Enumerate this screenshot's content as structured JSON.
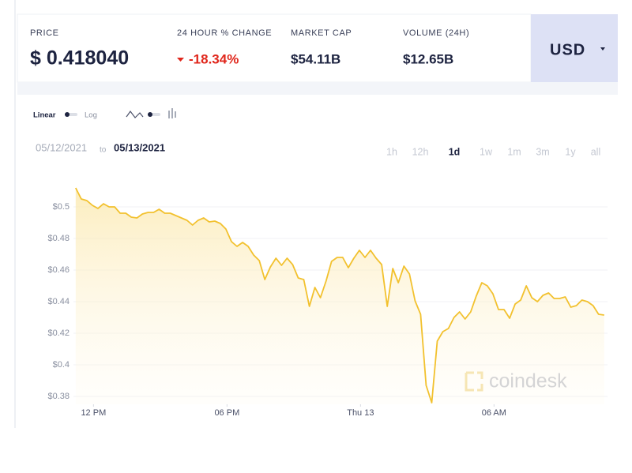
{
  "header": {
    "stats": [
      {
        "label": "PRICE",
        "value": "$ 0.418040"
      },
      {
        "label": "24 HOUR % CHANGE",
        "value": "-18.34%"
      },
      {
        "label": "MARKET CAP",
        "value": "$54.11B"
      },
      {
        "label": "VOLUME (24H)",
        "value": "$12.65B"
      }
    ],
    "currency": "USD"
  },
  "controls": {
    "scale": [
      "Linear",
      "Log"
    ],
    "date_from": "05/12/2021",
    "date_joiner": "to",
    "date_to": "05/13/2021",
    "ranges": [
      "1h",
      "12h",
      "1d",
      "1w",
      "1m",
      "3m",
      "1y",
      "all"
    ],
    "active_range": "1d"
  },
  "watermark": "coindesk",
  "chart_data": {
    "type": "line",
    "color": "#f2c12e",
    "grid": true,
    "xlim": [
      11.1,
      35.1
    ],
    "xticks": [
      {
        "value": 12,
        "label": "12 PM"
      },
      {
        "value": 18,
        "label": "06 PM"
      },
      {
        "value": 24,
        "label": "Thu 13"
      },
      {
        "value": 30,
        "label": "06 AM"
      }
    ],
    "ylim": [
      0.375,
      0.516
    ],
    "yticks": [
      {
        "value": 0.38,
        "label": "$0.38"
      },
      {
        "value": 0.4,
        "label": "$0.4"
      },
      {
        "value": 0.42,
        "label": "$0.42"
      },
      {
        "value": 0.44,
        "label": "$0.44"
      },
      {
        "value": 0.46,
        "label": "$0.46"
      },
      {
        "value": 0.48,
        "label": "$0.48"
      },
      {
        "value": 0.5,
        "label": "$0.5"
      }
    ],
    "x": [
      11.2,
      11.45,
      11.7,
      11.95,
      12.2,
      12.45,
      12.7,
      12.95,
      13.2,
      13.45,
      13.7,
      13.95,
      14.2,
      14.45,
      14.7,
      14.95,
      15.2,
      15.45,
      15.7,
      15.95,
      16.2,
      16.45,
      16.7,
      16.95,
      17.2,
      17.45,
      17.7,
      17.95,
      18.2,
      18.45,
      18.7,
      18.95,
      19.2,
      19.45,
      19.7,
      19.95,
      20.2,
      20.45,
      20.7,
      20.95,
      21.2,
      21.45,
      21.7,
      21.95,
      22.2,
      22.45,
      22.7,
      22.95,
      23.2,
      23.45,
      23.7,
      23.95,
      24.2,
      24.45,
      24.7,
      24.95,
      25.2,
      25.45,
      25.7,
      25.95,
      26.2,
      26.45,
      26.7,
      26.95,
      27.2,
      27.45,
      27.7,
      27.95,
      28.2,
      28.45,
      28.7,
      28.95,
      29.2,
      29.45,
      29.7,
      29.95,
      30.2,
      30.45,
      30.7,
      30.95,
      31.2,
      31.45,
      31.7,
      31.95,
      32.2,
      32.45,
      32.7,
      32.95,
      33.2,
      33.45,
      33.7,
      33.95,
      34.2,
      34.45,
      34.7,
      34.95
    ],
    "values": [
      0.512,
      0.505,
      0.504,
      0.501,
      0.499,
      0.502,
      0.5,
      0.5,
      0.496,
      0.496,
      0.4935,
      0.493,
      0.4955,
      0.4965,
      0.4965,
      0.4985,
      0.496,
      0.496,
      0.4945,
      0.493,
      0.4915,
      0.4885,
      0.4915,
      0.493,
      0.4905,
      0.491,
      0.4895,
      0.486,
      0.478,
      0.475,
      0.4775,
      0.475,
      0.4695,
      0.466,
      0.454,
      0.462,
      0.4675,
      0.463,
      0.4675,
      0.4635,
      0.455,
      0.454,
      0.437,
      0.449,
      0.4425,
      0.453,
      0.4655,
      0.468,
      0.468,
      0.4615,
      0.4675,
      0.4725,
      0.468,
      0.4725,
      0.4675,
      0.4635,
      0.437,
      0.461,
      0.452,
      0.4625,
      0.4575,
      0.4405,
      0.432,
      0.387,
      0.376,
      0.415,
      0.421,
      0.423,
      0.43,
      0.4335,
      0.429,
      0.4335,
      0.4435,
      0.452,
      0.45,
      0.445,
      0.435,
      0.435,
      0.4295,
      0.4385,
      0.441,
      0.45,
      0.4425,
      0.44,
      0.444,
      0.4455,
      0.442,
      0.442,
      0.443,
      0.4365,
      0.4375,
      0.441,
      0.44,
      0.4375,
      0.432,
      0.4315
    ]
  }
}
